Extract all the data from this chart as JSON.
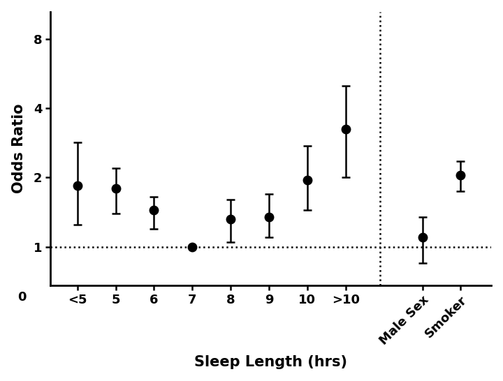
{
  "categories": [
    "<5",
    "5",
    "6",
    "7",
    "8",
    "9",
    "10",
    ">10",
    "Male Sex",
    "Smoker"
  ],
  "x_positions": [
    0,
    1,
    2,
    3,
    4,
    5,
    6,
    7,
    9,
    10
  ],
  "odds_ratios": [
    1.85,
    1.8,
    1.45,
    1.0,
    1.32,
    1.35,
    1.95,
    3.25,
    1.1,
    2.05
  ],
  "ci_lower": [
    1.25,
    1.4,
    1.2,
    1.0,
    1.05,
    1.1,
    1.45,
    2.0,
    0.85,
    1.75
  ],
  "ci_upper": [
    2.85,
    2.2,
    1.65,
    1.0,
    1.6,
    1.7,
    2.75,
    5.0,
    1.35,
    2.35
  ],
  "ylabel": "Odds Ratio",
  "xlabel": "Sleep Length (hrs)",
  "hline_y": 1.0,
  "vline_x": 7.9,
  "point_color": "#000000",
  "background_color": "#ffffff",
  "ylabel_fontsize": 15,
  "xlabel_fontsize": 15,
  "tick_fontsize": 13,
  "font_family": "Arial",
  "font_weight": "bold"
}
